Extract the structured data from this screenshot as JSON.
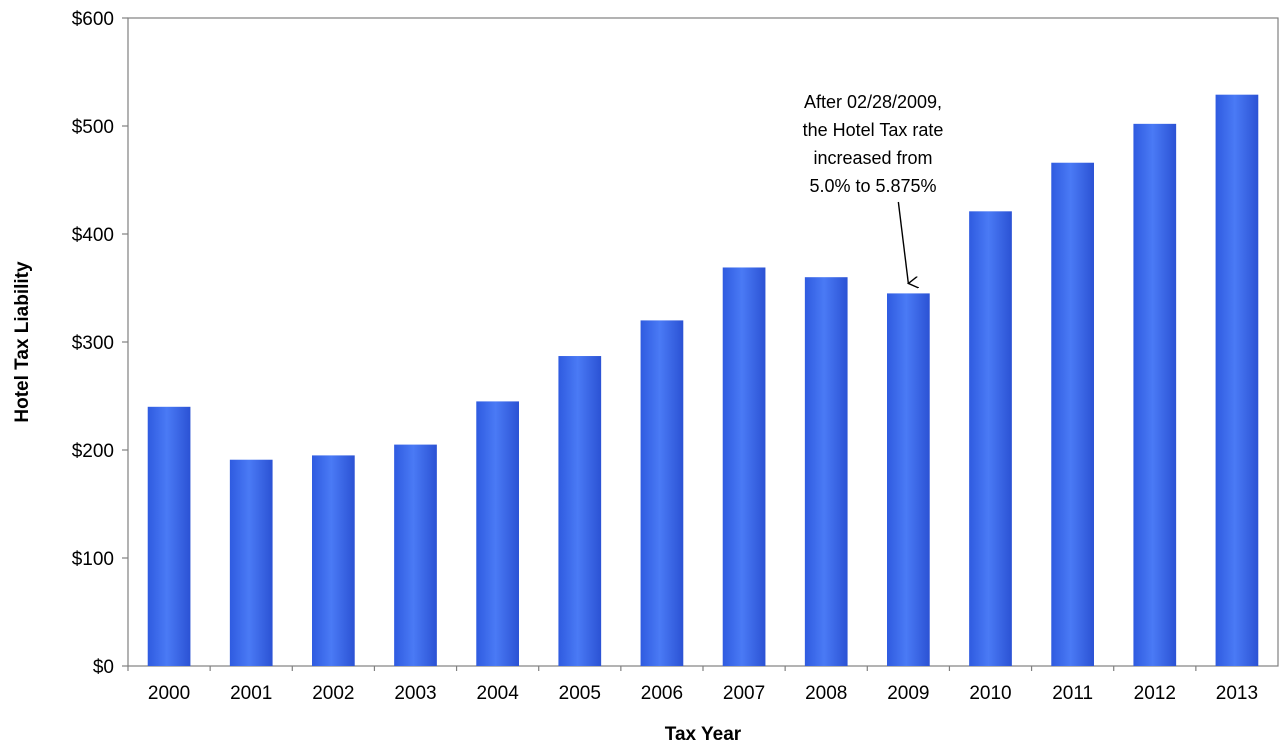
{
  "chart_data": {
    "type": "bar",
    "xlabel": "Tax Year",
    "ylabel": "Hotel Tax Liability",
    "categories": [
      "2000",
      "2001",
      "2002",
      "2003",
      "2004",
      "2005",
      "2006",
      "2007",
      "2008",
      "2009",
      "2010",
      "2011",
      "2012",
      "2013"
    ],
    "values": [
      240,
      191,
      195,
      205,
      245,
      287,
      320,
      369,
      360,
      345,
      421,
      466,
      502,
      529
    ],
    "ylim": [
      0,
      600
    ],
    "yticks": [
      0,
      100,
      200,
      300,
      400,
      500,
      600
    ],
    "ytick_labels": [
      "$0",
      "$100",
      "$200",
      "$300",
      "$400",
      "$500",
      "$600"
    ],
    "grid": false,
    "legend": "none",
    "bar_color": "#3f6ef0",
    "annotation": {
      "lines": [
        "After 02/28/2009,",
        "the Hotel Tax rate",
        "increased from",
        "5.0% to 5.875%"
      ],
      "target_category": "2009"
    }
  }
}
